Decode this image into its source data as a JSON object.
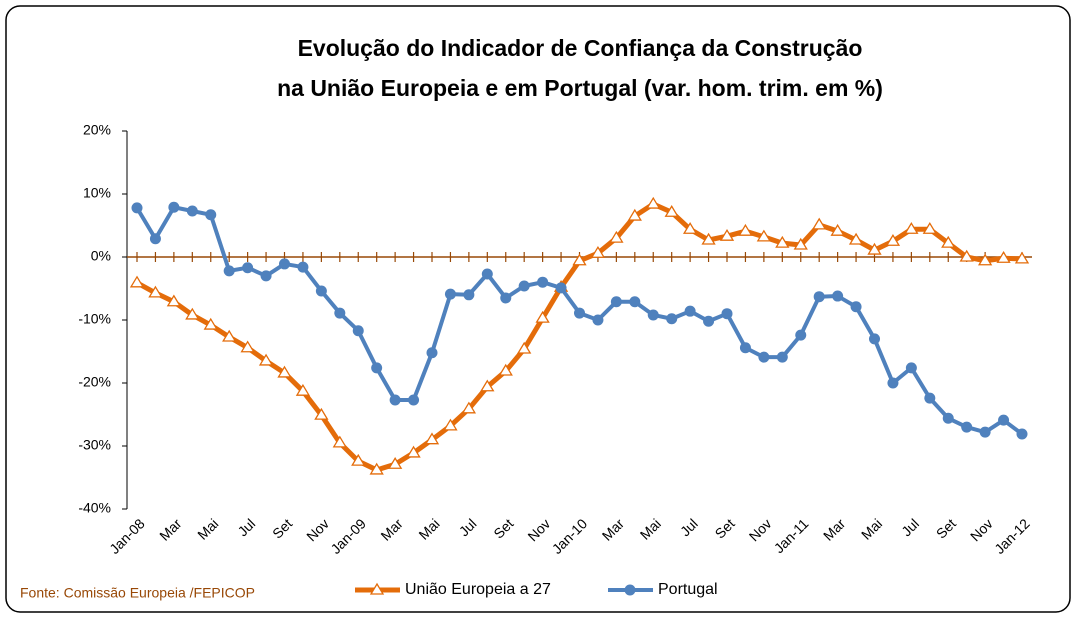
{
  "chart_data": {
    "type": "line",
    "title": [
      "Evolução do Indicador de Confiança da Construção",
      "na União Europeia e em Portugal (var. hom. trim. em %)"
    ],
    "source": "Fonte: Comissão Europeia /FEPICOP",
    "categories": [
      "Jan-08",
      null,
      "Mar",
      null,
      "Mai",
      null,
      "Jul",
      null,
      "Set",
      null,
      "Nov",
      null,
      "Jan-09",
      null,
      "Mar",
      null,
      "Mai",
      null,
      "Jul",
      null,
      "Set",
      null,
      "Nov",
      null,
      "Jan-10",
      null,
      "Mar",
      null,
      "Mai",
      null,
      "Jul",
      null,
      "Set",
      null,
      "Nov",
      null,
      "Jan-11",
      null,
      "Mar",
      null,
      "Mai",
      null,
      "Jul",
      null,
      "Set",
      null,
      "Nov",
      null,
      "Jan-12"
    ],
    "series": [
      {
        "name": "União Europeia a 27",
        "color": "#e46c0a",
        "marker": "triangle",
        "values": [
          -4.1,
          -5.7,
          -7.1,
          -9.2,
          -10.8,
          -12.7,
          -14.4,
          -16.5,
          -18.4,
          -21.3,
          -25.1,
          -29.5,
          -32.4,
          -33.8,
          -32.9,
          -31.1,
          -29.0,
          -26.8,
          -24.1,
          -20.6,
          -18.1,
          -14.6,
          -9.7,
          -4.8,
          -0.6,
          0.6,
          3.0,
          6.5,
          8.4,
          7.1,
          4.4,
          2.7,
          3.3,
          4.1,
          3.2,
          2.2,
          1.9,
          5.1,
          4.1,
          2.7,
          1.1,
          2.5,
          4.4,
          4.4,
          2.2,
          0,
          -0.6,
          -0.2,
          -0.3
        ]
      },
      {
        "name": "Portugal",
        "color": "#4f81bd",
        "marker": "circle",
        "values": [
          7.8,
          2.9,
          7.9,
          7.3,
          6.7,
          -2.2,
          -1.7,
          -3.0,
          -1.1,
          -1.6,
          -5.4,
          -8.9,
          -11.7,
          -17.6,
          -22.7,
          -22.7,
          -15.2,
          -5.9,
          -6.0,
          -2.7,
          -6.5,
          -4.6,
          -4.0,
          -4.9,
          -8.9,
          -10.0,
          -7.1,
          -7.1,
          -9.2,
          -9.8,
          -8.6,
          -10.2,
          -9.0,
          -14.4,
          -15.9,
          -15.9,
          -12.4,
          -6.3,
          -6.2,
          -7.9,
          -13.0,
          -20.0,
          -17.6,
          -22.4,
          -25.6,
          -27.0,
          -27.8,
          -25.9,
          -28.1
        ]
      }
    ],
    "ylim": [
      -40,
      20
    ],
    "yticks": [
      {
        "value": -40,
        "label": "-40%"
      },
      {
        "value": -30,
        "label": "-30%"
      },
      {
        "value": -20,
        "label": "-20%"
      },
      {
        "value": -10,
        "label": "-10%"
      },
      {
        "value": 0,
        "label": "0%"
      },
      {
        "value": 10,
        "label": "10%"
      },
      {
        "value": 20,
        "label": "20%"
      }
    ]
  }
}
